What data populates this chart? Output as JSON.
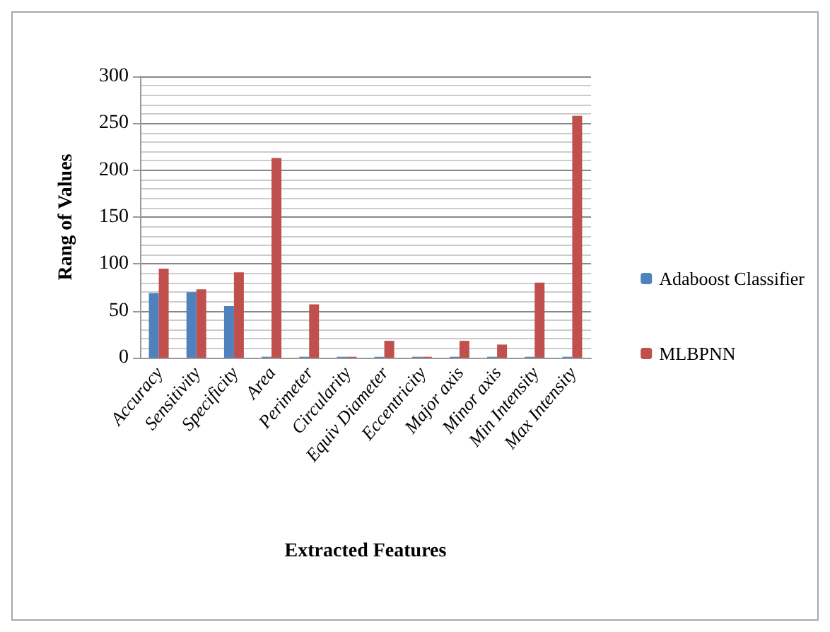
{
  "chart_data": {
    "type": "bar",
    "xlabel": "Extracted Features",
    "ylabel": "Rang of Values",
    "categories": [
      "Accuracy",
      "Sensitivity",
      "Specificity",
      "Area",
      "Perimeter",
      "Circularity",
      "Equiv Diameter",
      "Eccentricity",
      "Major axis",
      "Minor axis",
      "Min Intensity",
      "Max Intensity"
    ],
    "series": [
      {
        "name": "Adaboost Classifier",
        "color": "#4f81bd",
        "values": [
          69,
          70,
          55,
          1,
          1,
          1,
          1,
          1,
          1,
          1,
          1,
          1
        ]
      },
      {
        "name": "MLBPNN",
        "color": "#c0504d",
        "values": [
          95,
          73,
          91,
          213,
          57,
          1,
          18,
          1,
          18,
          14,
          80,
          258
        ]
      }
    ],
    "ylim": [
      0,
      300
    ],
    "yticks": [
      0,
      50,
      100,
      150,
      200,
      250,
      300
    ],
    "grid": "y",
    "legend": "right"
  }
}
